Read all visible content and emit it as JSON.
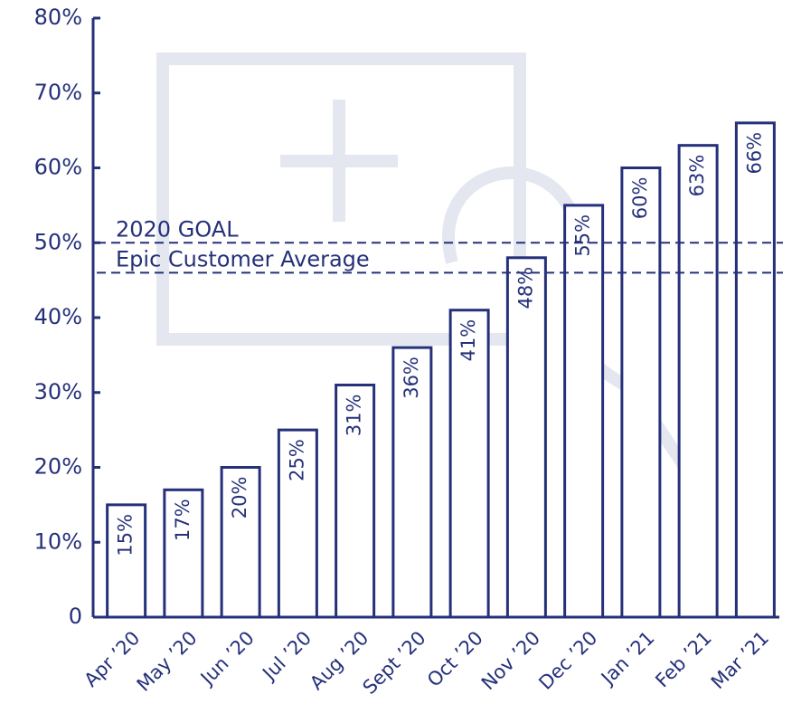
{
  "chart_data": {
    "type": "bar",
    "categories": [
      "Apr ’20",
      "May ’20",
      "Jun ’20",
      "Jul ’20",
      "Aug ’20",
      "Sept ’20",
      "Oct ’20",
      "Nov ’20",
      "Dec ’20",
      "Jan ’21",
      "Feb ’21",
      "Mar ’21"
    ],
    "values": [
      15,
      17,
      20,
      25,
      31,
      36,
      41,
      48,
      55,
      60,
      63,
      66
    ],
    "value_labels": [
      "15%",
      "17%",
      "20%",
      "25%",
      "31%",
      "36%",
      "41%",
      "48%",
      "55%",
      "60%",
      "63%",
      "66%"
    ],
    "color": "#25307a",
    "ylim": [
      0,
      80
    ],
    "yticks": [
      0,
      {
        "value": 10,
        "label": "10%"
      },
      {
        "value": 20,
        "label": "20%"
      },
      {
        "value": 30,
        "label": "30%"
      },
      {
        "value": 40,
        "label": "40%"
      },
      {
        "value": 50,
        "label": "50%"
      },
      {
        "value": 60,
        "label": "60%"
      },
      {
        "value": 70,
        "label": "70%"
      },
      {
        "value": 80,
        "label": "80%"
      }
    ],
    "annotations": [
      {
        "text": "2020 GOAL",
        "value": 50
      },
      {
        "text": "Epic Customer Average",
        "value": 46
      }
    ],
    "grid": false
  }
}
